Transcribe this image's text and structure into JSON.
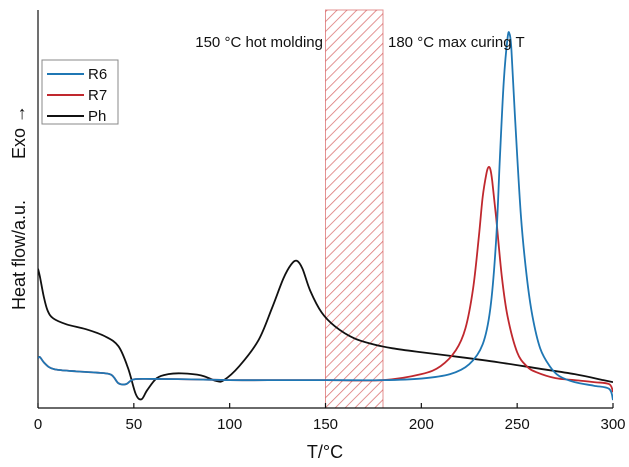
{
  "chart_data": {
    "type": "line",
    "xlabel": "T/°C",
    "ylabel": "Heat flow/a.u.",
    "ylabel_side": "Exo →",
    "xlim": [
      0,
      300
    ],
    "ylim": [
      0,
      100
    ],
    "xticks": [
      0,
      50,
      100,
      150,
      200,
      250,
      300
    ],
    "grid": false,
    "legend_position": "top-left",
    "annotations": [
      {
        "text": "150 °C hot molding",
        "x": 150
      },
      {
        "text": "180 °C max curing T",
        "x": 180
      }
    ],
    "shaded_region": {
      "x": [
        150,
        180
      ],
      "pattern": "hatched",
      "color": "#d04848"
    },
    "series": [
      {
        "name": "R6",
        "color": "#1f77b4",
        "x": [
          0,
          1,
          3,
          6,
          10,
          20,
          30,
          38,
          42,
          46,
          50,
          60,
          80,
          100,
          120,
          150,
          180,
          200,
          215,
          225,
          232,
          236,
          239,
          241,
          243,
          245,
          246,
          247,
          249,
          252,
          255,
          258,
          262,
          267,
          272,
          280,
          290,
          298,
          300
        ],
        "y": [
          12.5,
          12.8,
          11.5,
          10.2,
          9.6,
          9.2,
          8.9,
          8.4,
          6.2,
          6.0,
          7.2,
          7.3,
          7.2,
          7.0,
          7.0,
          7.0,
          7.0,
          7.4,
          8.5,
          11.0,
          16.0,
          25.0,
          42.0,
          63.0,
          82.0,
          93.0,
          94.0,
          90.0,
          72.0,
          48.0,
          33.0,
          23.0,
          15.0,
          10.5,
          8.0,
          6.5,
          5.6,
          4.8,
          2.0
        ]
      },
      {
        "name": "R7",
        "color": "#c0282e",
        "x": [
          0,
          1,
          3,
          6,
          10,
          20,
          30,
          38,
          42,
          46,
          50,
          60,
          80,
          100,
          120,
          150,
          180,
          200,
          210,
          218,
          223,
          227,
          230,
          232,
          234,
          235,
          236,
          237,
          239,
          242,
          245,
          250,
          255,
          260,
          270,
          280,
          290,
          298,
          300
        ],
        "y": [
          12.5,
          12.8,
          11.5,
          10.2,
          9.6,
          9.2,
          8.9,
          8.4,
          6.2,
          6.0,
          7.2,
          7.3,
          7.2,
          7.0,
          7.0,
          7.0,
          7.0,
          8.5,
          10.5,
          14.5,
          20.0,
          30.0,
          43.0,
          53.0,
          59.0,
          60.5,
          60.0,
          57.0,
          48.0,
          33.0,
          23.0,
          14.0,
          10.5,
          9.0,
          7.5,
          7.0,
          6.5,
          6.0,
          4.0
        ]
      },
      {
        "name": "Ph",
        "color": "#111111",
        "x": [
          0,
          1,
          3,
          5,
          8,
          15,
          25,
          35,
          42,
          47,
          51,
          54,
          57,
          62,
          68,
          75,
          85,
          93,
          97,
          105,
          115,
          122,
          128,
          132,
          135,
          138,
          142,
          148,
          155,
          165,
          175,
          185,
          200,
          220,
          240,
          260,
          280,
          295,
          300
        ],
        "y": [
          35.0,
          33.0,
          28.0,
          24.5,
          22.5,
          21.0,
          19.8,
          18.0,
          15.5,
          10.0,
          3.5,
          2.2,
          4.5,
          7.5,
          8.5,
          8.7,
          8.2,
          6.8,
          7.0,
          10.5,
          17.0,
          25.0,
          32.5,
          36.0,
          37.0,
          35.0,
          29.5,
          24.0,
          20.5,
          17.5,
          16.0,
          15.0,
          14.0,
          12.8,
          11.5,
          10.0,
          8.5,
          7.0,
          6.5
        ]
      }
    ]
  }
}
